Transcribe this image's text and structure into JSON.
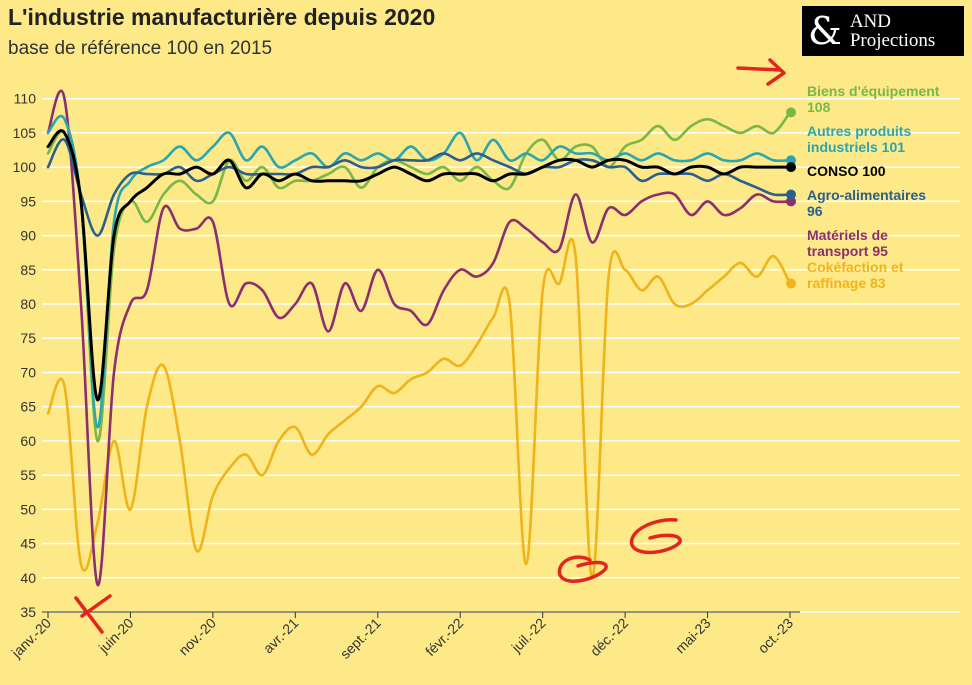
{
  "title": "L'industrie manufacturière depuis 2020",
  "subtitle": "base de référence 100 en 2015",
  "logo": {
    "symbol": "&",
    "line1": "AND",
    "line2": "Projections"
  },
  "chart_data": {
    "type": "line",
    "title": "L'industrie manufacturière depuis 2020",
    "subtitle": "base de référence 100 en 2015",
    "xlabel": "",
    "ylabel": "",
    "ylim": [
      35,
      112
    ],
    "y_ticks": [
      35,
      40,
      45,
      50,
      55,
      60,
      65,
      70,
      75,
      80,
      85,
      90,
      95,
      100,
      105,
      110
    ],
    "x_range": [
      0,
      45
    ],
    "x_ticks": [
      {
        "i": 0,
        "label": "janv.-20"
      },
      {
        "i": 5,
        "label": "juin-20"
      },
      {
        "i": 10,
        "label": "nov.-20"
      },
      {
        "i": 15,
        "label": "avr.-21"
      },
      {
        "i": 20,
        "label": "sept.-21"
      },
      {
        "i": 25,
        "label": "févr.-22"
      },
      {
        "i": 30,
        "label": "juil.-22"
      },
      {
        "i": 35,
        "label": "déc.-22"
      },
      {
        "i": 40,
        "label": "mai-23"
      },
      {
        "i": 45,
        "label": "oct.-23"
      }
    ],
    "grid": true,
    "legend_placement": "right",
    "series": [
      {
        "name": "Biens d'équipement",
        "end_value": "108",
        "color": "#7ab648",
        "values": [
          102,
          105,
          95,
          60,
          88,
          95,
          92,
          96,
          98,
          96,
          95,
          101,
          98,
          100,
          97,
          98,
          98,
          99,
          100,
          97,
          100,
          101,
          100,
          99,
          100,
          98,
          100,
          98,
          97,
          102,
          104,
          101,
          103,
          103,
          100,
          103,
          104,
          106,
          104,
          106,
          107,
          106,
          105,
          106,
          105,
          108
        ]
      },
      {
        "name": "Autres produits industriels",
        "end_value": "101",
        "color": "#2aa6b0",
        "values": [
          105,
          107,
          95,
          62,
          92,
          98,
          100,
          101,
          103,
          101,
          103,
          105,
          101,
          103,
          100,
          101,
          102,
          100,
          102,
          101,
          102,
          101,
          103,
          101,
          102,
          105,
          101,
          104,
          101,
          102,
          101,
          103,
          102,
          102,
          101,
          102,
          101,
          102,
          101,
          101,
          102,
          101,
          101,
          102,
          101,
          101
        ]
      },
      {
        "name": "CONSO",
        "end_value": "100",
        "color": "#000000",
        "values": [
          103,
          105,
          95,
          66,
          90,
          95,
          97,
          99,
          99,
          100,
          99,
          101,
          97,
          99,
          98,
          99,
          98,
          98,
          98,
          98,
          99,
          100,
          99,
          98,
          99,
          99,
          99,
          98,
          99,
          99,
          100,
          101,
          101,
          100,
          101,
          101,
          100,
          100,
          99,
          100,
          100,
          99,
          100,
          100,
          100,
          100
        ]
      },
      {
        "name": "Agro-alimentaires",
        "end_value": "96",
        "color": "#2a5f8f",
        "values": [
          100,
          104,
          96,
          90,
          96,
          99,
          99,
          99,
          100,
          98,
          99,
          100,
          99,
          99,
          99,
          99,
          100,
          100,
          101,
          100,
          100,
          101,
          101,
          101,
          102,
          101,
          102,
          101,
          100,
          99,
          100,
          100,
          101,
          101,
          100,
          100,
          98,
          99,
          99,
          99,
          98,
          99,
          98,
          97,
          96,
          96
        ]
      },
      {
        "name": "Matériels de transport",
        "end_value": "95",
        "color": "#8b2f6e",
        "values": [
          105,
          110,
          80,
          39,
          70,
          80,
          82,
          94,
          91,
          91,
          92,
          80,
          83,
          82,
          78,
          80,
          83,
          76,
          83,
          79,
          85,
          80,
          79,
          77,
          82,
          85,
          84,
          86,
          92,
          91,
          89,
          88,
          96,
          89,
          94,
          93,
          95,
          96,
          96,
          93,
          95,
          93,
          94,
          96,
          95,
          95
        ]
      },
      {
        "name": "Cokéfaction et raffinage",
        "end_value": "83",
        "color": "#f0b31a",
        "values": [
          64,
          68,
          42,
          48,
          60,
          50,
          65,
          71,
          60,
          44,
          52,
          56,
          58,
          55,
          60,
          62,
          58,
          61,
          63,
          65,
          68,
          67,
          69,
          70,
          72,
          71,
          74,
          78,
          80,
          42,
          82,
          83,
          87,
          40,
          84,
          85,
          82,
          84,
          80,
          80,
          82,
          84,
          86,
          84,
          87,
          83
        ]
      }
    ]
  }
}
